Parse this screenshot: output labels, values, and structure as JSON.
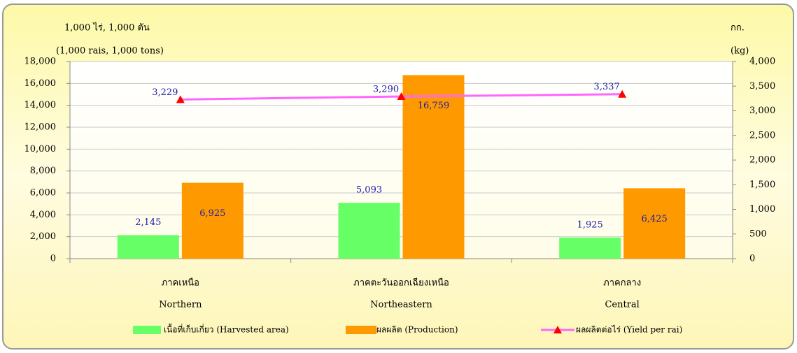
{
  "chart_data": {
    "type": "bar-line",
    "y_label": [
      "1,000 ไร่,  1,000 ตัน",
      "(1,000 rais,  1,000 tons)"
    ],
    "y2_label": [
      "กก.",
      "(kg)"
    ],
    "categories": [
      "ภาคเหนือ",
      "ภาคตะวันออกเฉียงเหนือ",
      "ภาคกลาง"
    ],
    "categories_en": [
      "Northern",
      "Northeastern",
      "Central"
    ],
    "series": [
      {
        "name": "เนื้อที่เก็บเกี่ยว (Harvested area)",
        "type": "bar",
        "color": "#66ff66",
        "values": [
          2145,
          5093,
          1925
        ],
        "value_labels": [
          "2,145",
          "5,093",
          "1,925"
        ]
      },
      {
        "name": "ผลผลิต  (Production)",
        "type": "bar",
        "color": "#ff9900",
        "values": [
          6925,
          16759,
          6425
        ],
        "value_labels": [
          "6,925",
          "16,759",
          "6,425"
        ]
      },
      {
        "name": "ผลผลิตต่อไร่  (Yield per rai)",
        "type": "line",
        "axis": "y2",
        "color": "#ff66ff",
        "marker_color": "#ff0000",
        "values": [
          3229,
          3290,
          3337
        ],
        "value_labels": [
          "3,229",
          "3,290",
          "3,337"
        ]
      }
    ],
    "ylim": [
      0,
      18000
    ],
    "yticks": [
      0,
      {
        "value": 2000,
        "label": "2,000"
      },
      {
        "value": 4000,
        "label": "4,000"
      },
      {
        "value": 6000,
        "label": "6,000"
      },
      {
        "value": 8000,
        "label": "8,000"
      },
      {
        "value": 10000,
        "label": "10,000"
      },
      {
        "value": 12000,
        "label": "12,000"
      },
      {
        "value": 14000,
        "label": "14,000"
      },
      {
        "value": 16000,
        "label": "16,000"
      },
      {
        "value": 18000,
        "label": "18,000"
      }
    ],
    "y2lim": [
      0,
      4000
    ],
    "y2ticks": [
      0,
      500,
      {
        "value": 1000,
        "label": "1,000"
      },
      {
        "value": 1500,
        "label": "1,500"
      },
      {
        "value": 2000,
        "label": "2,000"
      },
      {
        "value": 2500,
        "label": "2,500"
      },
      {
        "value": 3000,
        "label": "3,000"
      },
      {
        "value": 3500,
        "label": "3,500"
      },
      {
        "value": 4000,
        "label": "4,000"
      }
    ],
    "grid": true
  }
}
